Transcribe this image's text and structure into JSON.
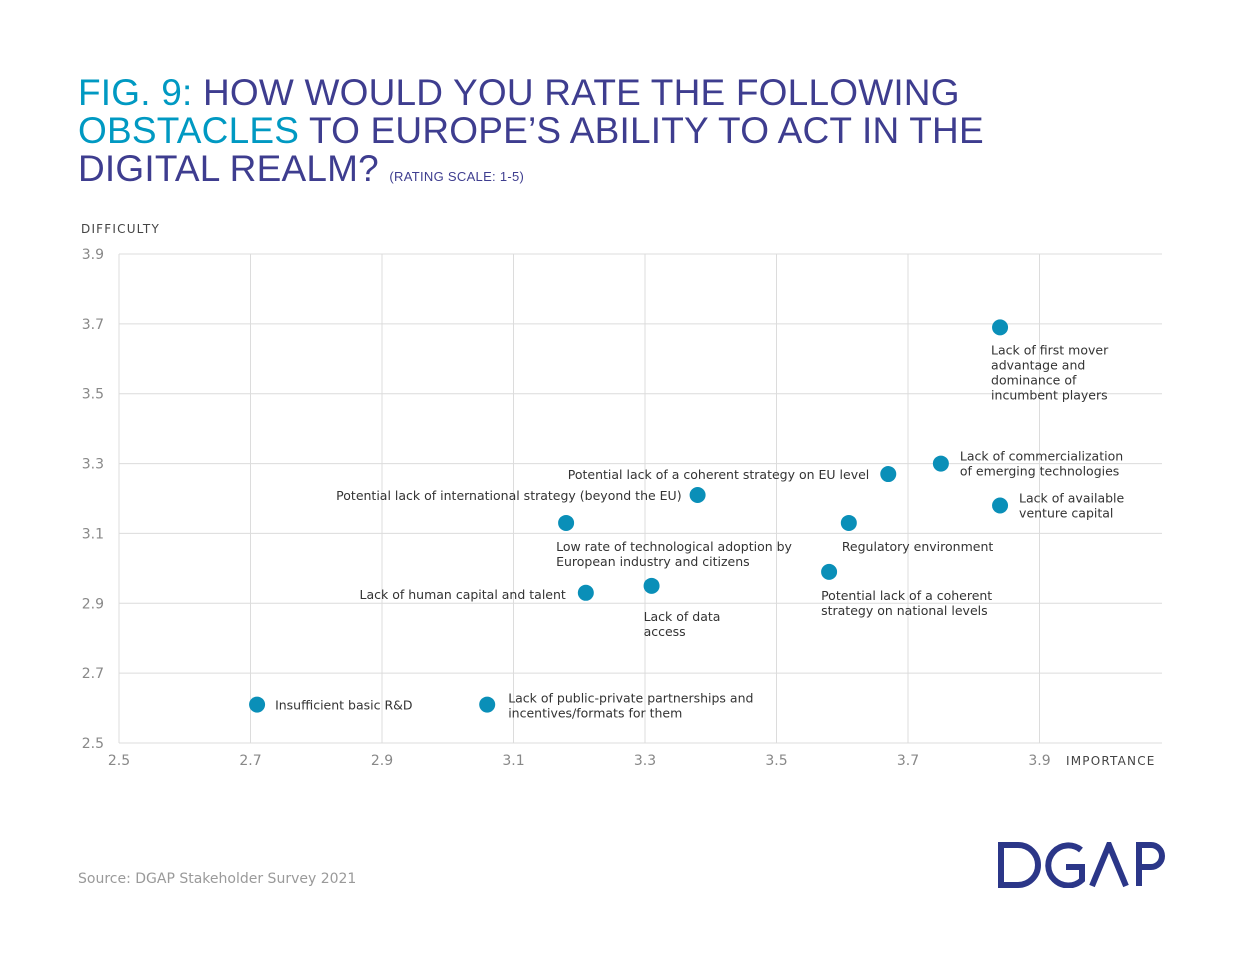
{
  "title": {
    "fig_label": "FIG. 9:",
    "line1_rest": "HOW WOULD YOU RATE THE FOLLOWING",
    "highlight": "OBSTACLES",
    "line2_rest": "TO EUROPE’S ABILITY TO ACT IN THE",
    "line3": "DIGITAL REALM?",
    "subtitle": "(RATING SCALE: 1-5)"
  },
  "source": "Source: DGAP Stakeholder Survey 2021",
  "logo_text": "DGAP",
  "colors": {
    "title": "#3e3d8f",
    "accent": "#0099c2",
    "point": "#0a8fb8",
    "grid": "#dcdcdc"
  },
  "chart_data": {
    "type": "scatter",
    "xlabel": "IMPORTANCE",
    "ylabel": "DIFFICULTY",
    "xlim": [
      2.5,
      4.09
    ],
    "ylim": [
      2.5,
      3.9
    ],
    "xticks": [
      "2.5",
      "2.7",
      "2.9",
      "3.1",
      "3.3",
      "3.5",
      "3.7",
      "3.9"
    ],
    "yticks": [
      "3.9",
      "3.7",
      "3.5",
      "3.3",
      "3.1",
      "2.9",
      "2.7",
      "2.5"
    ],
    "grid": true,
    "points": [
      {
        "x": 3.84,
        "y": 3.69,
        "label": [
          "Lack of first mover",
          "advantage and",
          "dominance of",
          "incumbent players"
        ]
      },
      {
        "x": 3.75,
        "y": 3.3,
        "label": [
          "Lack of commercialization",
          "of emerging technologies"
        ]
      },
      {
        "x": 3.67,
        "y": 3.27,
        "label": [
          "Potential lack of a coherent strategy on EU level"
        ]
      },
      {
        "x": 3.84,
        "y": 3.18,
        "label": [
          "Lack of available",
          "venture capital"
        ]
      },
      {
        "x": 3.38,
        "y": 3.21,
        "label": [
          "Potential lack of international strategy (beyond the EU)"
        ]
      },
      {
        "x": 3.18,
        "y": 3.13,
        "label": [
          "Low rate of technological adoption by",
          "European industry and citizens"
        ]
      },
      {
        "x": 3.61,
        "y": 3.13,
        "label": [
          "Regulatory environment"
        ]
      },
      {
        "x": 3.58,
        "y": 2.99,
        "label": [
          "Potential lack of a coherent",
          "strategy on national levels"
        ]
      },
      {
        "x": 3.31,
        "y": 2.95,
        "label": [
          "Lack of data",
          "access"
        ]
      },
      {
        "x": 3.21,
        "y": 2.93,
        "label": [
          "Lack of human capital and talent"
        ]
      },
      {
        "x": 2.71,
        "y": 2.61,
        "label": [
          "Insufficient basic R&D"
        ]
      },
      {
        "x": 3.06,
        "y": 2.61,
        "label": [
          "Lack of public-private partnerships and",
          "incentives/formats for them"
        ]
      }
    ]
  }
}
